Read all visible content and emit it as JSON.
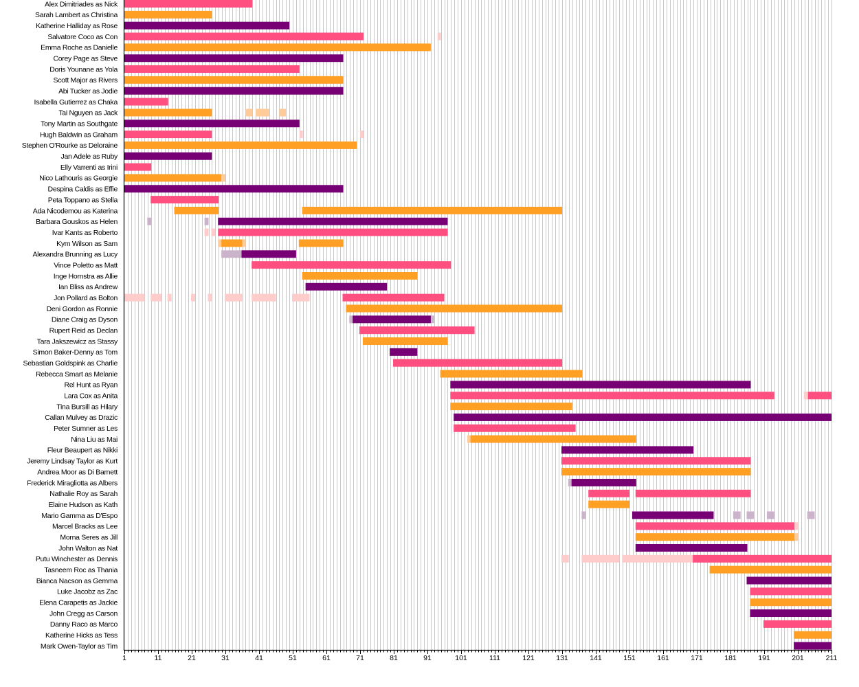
{
  "chart_data": {
    "type": "timeline",
    "title": "",
    "xlabel": "",
    "ylabel": "",
    "xlim": [
      1,
      211
    ],
    "x_ticks": [
      1,
      11,
      21,
      31,
      41,
      51,
      61,
      71,
      81,
      91,
      101,
      111,
      121,
      131,
      141,
      151,
      161,
      171,
      181,
      191,
      201,
      211
    ],
    "grid": "vertical lines at every unit",
    "palette": {
      "pink": "#ff4f81",
      "pink_light": "#ffcccc",
      "orange": "#ffa024",
      "orange_light": "#ffcc99",
      "purple": "#770074",
      "purple_light": "#ccb3cc",
      "grid": "#c8c8c8",
      "axis": "#000000"
    },
    "rows": [
      {
        "label": "Alex Dimitriades as Nick",
        "color": "pink",
        "main": [
          [
            1,
            39
          ]
        ],
        "light": []
      },
      {
        "label": "Sarah Lambert as Christina",
        "color": "orange",
        "main": [
          [
            1,
            27
          ]
        ],
        "light": []
      },
      {
        "label": "Katherine Halliday as Rose",
        "color": "purple",
        "main": [
          [
            1,
            50
          ]
        ],
        "light": []
      },
      {
        "label": "Salvatore Coco as Con",
        "color": "pink",
        "main": [
          [
            1,
            72
          ]
        ],
        "light": [
          [
            94,
            95
          ]
        ]
      },
      {
        "label": "Emma Roche as Danielle",
        "color": "orange",
        "main": [
          [
            1,
            92
          ]
        ],
        "light": []
      },
      {
        "label": "Corey Page as Steve",
        "color": "purple",
        "main": [
          [
            1,
            66
          ]
        ],
        "light": []
      },
      {
        "label": "Doris Younane as Yola",
        "color": "pink",
        "main": [
          [
            1,
            53
          ]
        ],
        "light": []
      },
      {
        "label": "Scott Major as Rivers",
        "color": "orange",
        "main": [
          [
            1,
            66
          ]
        ],
        "light": []
      },
      {
        "label": "Abi Tucker as Jodie",
        "color": "purple",
        "main": [
          [
            1,
            66
          ]
        ],
        "light": []
      },
      {
        "label": "Isabella Gutierrez as Chaka",
        "color": "pink",
        "main": [
          [
            1,
            14
          ]
        ],
        "light": []
      },
      {
        "label": "Tai Nguyen as Jack",
        "color": "orange",
        "main": [
          [
            1,
            27
          ]
        ],
        "light": [
          [
            37,
            39
          ],
          [
            40,
            44
          ],
          [
            47,
            49
          ]
        ]
      },
      {
        "label": "Tony Martin as Southgate",
        "color": "purple",
        "main": [
          [
            1,
            53
          ]
        ],
        "light": []
      },
      {
        "label": "Hugh Baldwin as Graham",
        "color": "pink",
        "main": [
          [
            1,
            27
          ]
        ],
        "light": [
          [
            53,
            54
          ],
          [
            71,
            72
          ]
        ]
      },
      {
        "label": "Stephen O'Rourke as Deloraine",
        "color": "orange",
        "main": [
          [
            1,
            70
          ]
        ],
        "light": []
      },
      {
        "label": "Jan Adele as Ruby",
        "color": "purple",
        "main": [
          [
            1,
            27
          ]
        ],
        "light": []
      },
      {
        "label": "Elly Varrenti as Irini",
        "color": "pink",
        "main": [
          [
            1,
            9
          ]
        ],
        "light": []
      },
      {
        "label": "Nico Lathouris as Georgie",
        "color": "orange",
        "main": [
          [
            1,
            29.8
          ]
        ],
        "light": [
          [
            29.8,
            31
          ]
        ]
      },
      {
        "label": "Despina Caldis as Effie",
        "color": "purple",
        "main": [
          [
            1,
            66
          ]
        ],
        "light": []
      },
      {
        "label": "Peta Toppano as Stella",
        "color": "pink",
        "main": [
          [
            8.8,
            29
          ]
        ],
        "light": []
      },
      {
        "label": "Ada Nicodemou as Katerina",
        "color": "orange",
        "main": [
          [
            15.8,
            29
          ],
          [
            53.8,
            131
          ]
        ],
        "light": []
      },
      {
        "label": "Barbara Gouskos as Helen",
        "color": "purple",
        "main": [
          [
            28.8,
            97
          ]
        ],
        "light": [
          [
            7.8,
            9
          ],
          [
            24.8,
            26
          ]
        ]
      },
      {
        "label": "Ivar Kants as Roberto",
        "color": "pink",
        "main": [
          [
            28.8,
            97
          ]
        ],
        "light": [
          [
            24.8,
            26
          ],
          [
            26.8,
            28
          ]
        ]
      },
      {
        "label": "Kym Wilson as Sam",
        "color": "orange",
        "main": [
          [
            29.8,
            36
          ],
          [
            52.8,
            66
          ]
        ],
        "light": [
          [
            28.8,
            30
          ],
          [
            35.8,
            37
          ]
        ]
      },
      {
        "label": "Alexandra Brunning as Lucy",
        "color": "purple",
        "main": [
          [
            35.8,
            52
          ]
        ],
        "light": [
          [
            29.8,
            36
          ]
        ]
      },
      {
        "label": "Vince Poletto as Matt",
        "color": "pink",
        "main": [
          [
            38.8,
            98
          ]
        ],
        "light": []
      },
      {
        "label": "Inge Hornstra as Allie",
        "color": "orange",
        "main": [
          [
            53.8,
            88
          ]
        ],
        "light": []
      },
      {
        "label": "Ian Bliss as Andrew",
        "color": "purple",
        "main": [
          [
            54.8,
            79
          ]
        ],
        "light": []
      },
      {
        "label": "Jon Pollard as Bolton",
        "color": "pink",
        "main": [
          [
            65.8,
            96
          ]
        ],
        "light": [
          [
            1,
            7
          ],
          [
            8.8,
            12
          ],
          [
            13.8,
            15
          ],
          [
            20.8,
            22
          ],
          [
            25.8,
            27
          ],
          [
            30.8,
            32
          ],
          [
            31.8,
            36
          ],
          [
            38.8,
            46
          ],
          [
            50.8,
            54
          ],
          [
            53.8,
            56
          ]
        ]
      },
      {
        "label": "Deni Gordon as Ronnie",
        "color": "orange",
        "main": [
          [
            66.8,
            131
          ]
        ],
        "light": []
      },
      {
        "label": "Diane Craig as Dyson",
        "color": "purple",
        "main": [
          [
            68.8,
            92
          ]
        ],
        "light": [
          [
            67.8,
            69
          ],
          [
            91.8,
            93
          ]
        ]
      },
      {
        "label": "Rupert Reid as Declan",
        "color": "pink",
        "main": [
          [
            70.8,
            105
          ]
        ],
        "light": []
      },
      {
        "label": "Tara Jakszewicz as Stassy",
        "color": "orange",
        "main": [
          [
            71.8,
            97
          ]
        ],
        "light": []
      },
      {
        "label": "Simon Baker-Denny as Tom",
        "color": "purple",
        "main": [
          [
            79.8,
            88
          ]
        ],
        "light": []
      },
      {
        "label": "Sebastian Goldspink as Charlie",
        "color": "pink",
        "main": [
          [
            80.8,
            131
          ]
        ],
        "light": []
      },
      {
        "label": "Rebecca Smart as Melanie",
        "color": "orange",
        "main": [
          [
            94.8,
            137
          ]
        ],
        "light": []
      },
      {
        "label": "Rel Hunt as Ryan",
        "color": "purple",
        "main": [
          [
            97.8,
            187
          ]
        ],
        "light": []
      },
      {
        "label": "Lara Cox as Anita",
        "color": "pink",
        "main": [
          [
            97.8,
            194
          ],
          [
            204,
            211
          ]
        ],
        "light": [
          [
            202.8,
            204
          ]
        ]
      },
      {
        "label": "Tina Bursill as Hilary",
        "color": "orange",
        "main": [
          [
            97.8,
            134
          ]
        ],
        "light": []
      },
      {
        "label": "Callan Mulvey as Drazic",
        "color": "purple",
        "main": [
          [
            98.8,
            211
          ]
        ],
        "light": []
      },
      {
        "label": "Peter Sumner as Les",
        "color": "pink",
        "main": [
          [
            98.8,
            135
          ]
        ],
        "light": []
      },
      {
        "label": "Nina Liu as Mai",
        "color": "orange",
        "main": [
          [
            103.8,
            153
          ]
        ],
        "light": [
          [
            102.8,
            104
          ]
        ]
      },
      {
        "label": "Fleur Beaupert as Nikki",
        "color": "purple",
        "main": [
          [
            130.8,
            170
          ]
        ],
        "light": []
      },
      {
        "label": "Jeremy Lindsay Taylor as Kurt",
        "color": "pink",
        "main": [
          [
            130.8,
            187
          ]
        ],
        "light": []
      },
      {
        "label": "Andrea Moor as Di Barnett",
        "color": "orange",
        "main": [
          [
            130.8,
            187
          ]
        ],
        "light": []
      },
      {
        "label": "Frederick Miragliotta as Albers",
        "color": "purple",
        "main": [
          [
            133.8,
            153
          ]
        ],
        "light": [
          [
            132.8,
            134
          ]
        ]
      },
      {
        "label": "Nathalie Roy as Sarah",
        "color": "pink",
        "main": [
          [
            138.8,
            151
          ],
          [
            152.8,
            187
          ]
        ],
        "light": []
      },
      {
        "label": "Elaine Hudson as Kath",
        "color": "orange",
        "main": [
          [
            138.8,
            151
          ]
        ],
        "light": []
      },
      {
        "label": "Mario Gamma as D'Espo",
        "color": "purple",
        "main": [
          [
            151.8,
            176
          ]
        ],
        "light": [
          [
            136.8,
            138
          ],
          [
            181.8,
            184
          ],
          [
            185.8,
            188
          ],
          [
            191.8,
            194
          ],
          [
            203.8,
            206
          ]
        ]
      },
      {
        "label": "Marcel Bracks as Lee",
        "color": "pink",
        "main": [
          [
            152.8,
            200
          ]
        ],
        "light": [
          [
            200,
            201
          ]
        ]
      },
      {
        "label": "Morna Seres as Jill",
        "color": "orange",
        "main": [
          [
            152.8,
            200
          ]
        ],
        "light": [
          [
            200,
            201
          ]
        ]
      },
      {
        "label": "John Walton as Nat",
        "color": "purple",
        "main": [
          [
            152.8,
            186
          ]
        ],
        "light": []
      },
      {
        "label": "Putu Winchester as Dennis",
        "color": "pink",
        "main": [
          [
            169.8,
            211
          ]
        ],
        "light": [
          [
            130.8,
            133
          ],
          [
            136.8,
            148
          ],
          [
            148.8,
            170
          ]
        ]
      },
      {
        "label": "Tasneem Roc as Thania",
        "color": "orange",
        "main": [
          [
            174.8,
            211
          ]
        ],
        "light": []
      },
      {
        "label": "Bianca Nacson as Gemma",
        "color": "purple",
        "main": [
          [
            185.8,
            211
          ]
        ],
        "light": []
      },
      {
        "label": "Luke Jacobz as Zac",
        "color": "pink",
        "main": [
          [
            186.8,
            211
          ]
        ],
        "light": []
      },
      {
        "label": "Elena Carapetis as Jackie",
        "color": "orange",
        "main": [
          [
            186.8,
            211
          ]
        ],
        "light": []
      },
      {
        "label": "John Cregg as Carson",
        "color": "purple",
        "main": [
          [
            186.8,
            211
          ]
        ],
        "light": []
      },
      {
        "label": "Danny Raco as Marco",
        "color": "pink",
        "main": [
          [
            190.8,
            211
          ]
        ],
        "light": []
      },
      {
        "label": "Katherine Hicks as Tess",
        "color": "orange",
        "main": [
          [
            199.8,
            211
          ]
        ],
        "light": []
      },
      {
        "label": "Mark Owen-Taylor as Tim",
        "color": "purple",
        "main": [
          [
            199.8,
            211
          ]
        ],
        "light": []
      }
    ]
  }
}
